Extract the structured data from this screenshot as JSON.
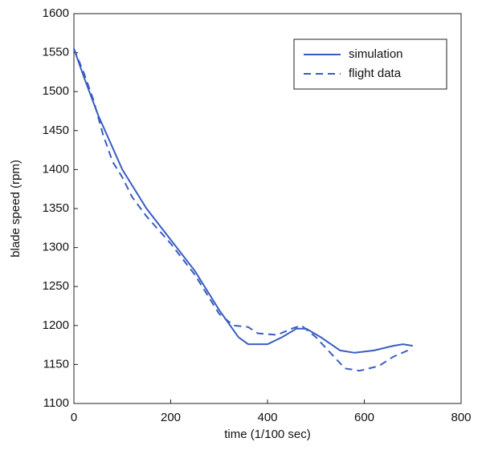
{
  "chart_data": {
    "type": "line",
    "xlabel": "time (1/100 sec)",
    "ylabel": "blade speed (rpm)",
    "xlim": [
      0,
      800
    ],
    "xticks": [
      0,
      200,
      400,
      600,
      800
    ],
    "ylim": [
      1100,
      1600
    ],
    "yticks": [
      1100,
      1150,
      1200,
      1250,
      1300,
      1350,
      1400,
      1450,
      1500,
      1550,
      1600
    ],
    "grid": false,
    "legend": "northeast",
    "series": [
      {
        "name": "simulation",
        "color": "#3a5cc0",
        "linestyle": "solid",
        "x": [
          0,
          20,
          50,
          100,
          150,
          200,
          250,
          300,
          340,
          360,
          400,
          430,
          460,
          480,
          510,
          550,
          580,
          620,
          660,
          680,
          700
        ],
        "values": [
          1555,
          1520,
          1470,
          1400,
          1350,
          1310,
          1270,
          1220,
          1185,
          1176,
          1176,
          1185,
          1196,
          1196,
          1185,
          1168,
          1165,
          1168,
          1174,
          1176,
          1174
        ]
      },
      {
        "name": "flight data",
        "color": "#3a5cc0",
        "linestyle": "dashed",
        "x": [
          0,
          20,
          40,
          60,
          80,
          100,
          120,
          150,
          200,
          250,
          300,
          330,
          360,
          380,
          420,
          450,
          470,
          500,
          530,
          560,
          590,
          630,
          660,
          690,
          700
        ],
        "values": [
          1555,
          1525,
          1490,
          1445,
          1410,
          1390,
          1365,
          1340,
          1305,
          1265,
          1215,
          1200,
          1198,
          1190,
          1188,
          1196,
          1200,
          1185,
          1165,
          1145,
          1142,
          1148,
          1160,
          1168,
          1168
        ]
      }
    ]
  }
}
